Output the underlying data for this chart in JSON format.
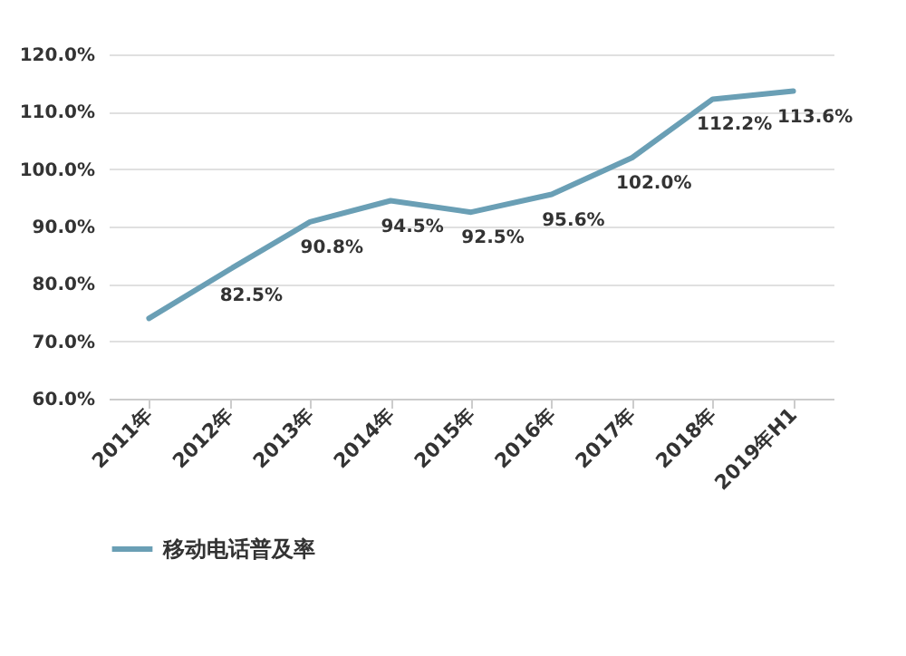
{
  "chart_data": {
    "type": "line",
    "categories": [
      "2011年",
      "2012年",
      "2013年",
      "2014年",
      "2015年",
      "2016年",
      "2017年",
      "2018年",
      "2019年H1"
    ],
    "series": [
      {
        "name": "移动电话普及率",
        "color": "#6a9fb5",
        "values": [
          74,
          82.5,
          90.8,
          94.5,
          92.5,
          95.6,
          102.0,
          112.2,
          113.6
        ],
        "value_labels": [
          null,
          "82.5%",
          "90.8%",
          "94.5%",
          "92.5%",
          "95.6%",
          "102.0%",
          "112.2%",
          "113.6%"
        ]
      }
    ],
    "ylim": [
      60,
      120
    ],
    "yticks": [
      {
        "value": 60,
        "label": "60.0%"
      },
      {
        "value": 70,
        "label": "70.0%"
      },
      {
        "value": 80,
        "label": "80.0%"
      },
      {
        "value": 90,
        "label": "90.0%"
      },
      {
        "value": 100,
        "label": "100.0%"
      },
      {
        "value": 110,
        "label": "110.0%"
      },
      {
        "value": 120,
        "label": "120.0%"
      }
    ],
    "grid": "y",
    "legend": "bottom",
    "marker": "none",
    "line_style": "solid"
  }
}
